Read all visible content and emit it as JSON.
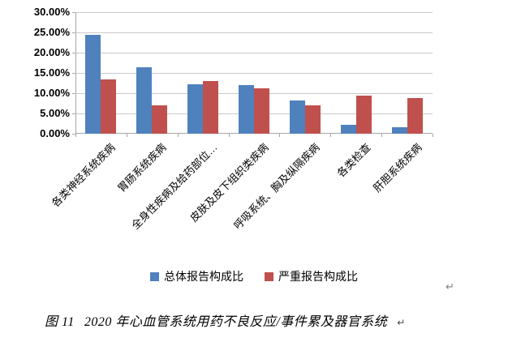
{
  "chart_data": {
    "type": "bar",
    "title": "",
    "categories": [
      "各类神经系统疾病",
      "胃肠系统疾病",
      "全身性疾病及给药部位…",
      "皮肤及皮下组织类疾病",
      "呼吸系统、胸及纵隔疾病",
      "各类检查",
      "肝胆系统疾病"
    ],
    "series": [
      {
        "name": "总体报告构成比",
        "color": "#4F81BD",
        "values": [
          24.5,
          16.4,
          12.2,
          12.0,
          8.3,
          2.2,
          1.6
        ]
      },
      {
        "name": "严重报告构成比",
        "color": "#C0504D",
        "values": [
          13.5,
          7.0,
          13.0,
          11.2,
          7.1,
          9.5,
          8.9
        ]
      }
    ],
    "ylim": [
      0,
      30
    ],
    "ytick_step": 5,
    "ytick_labels": [
      "0.00%",
      "5.00%",
      "10.00%",
      "15.00%",
      "20.00%",
      "25.00%",
      "30.00%"
    ],
    "value_unit": "%",
    "grid": true,
    "legend_position": "bottom",
    "xlabel_rotation_deg": 45
  },
  "caption": {
    "figure_label": "图 11",
    "text": "2020 年心血管系统用药不良反应/事件累及器官系统",
    "return_mark": "↵"
  },
  "page": {
    "paragraph_mark": "↵",
    "background": "#ffffff",
    "gridline_color": "#c9c9c9",
    "axis_color": "#a6a6a6"
  }
}
